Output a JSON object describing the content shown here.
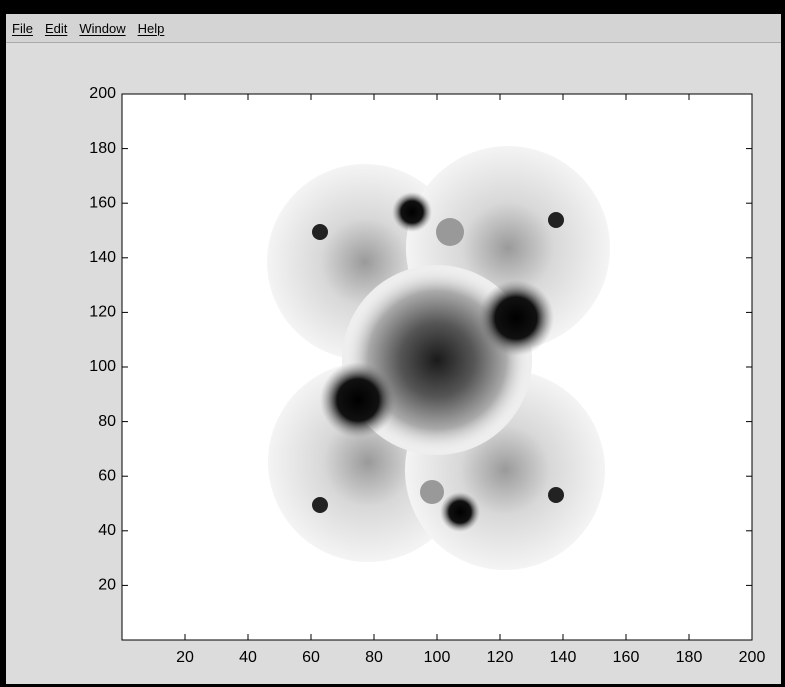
{
  "menu": [
    "File",
    "Edit",
    "Window",
    "Help"
  ],
  "chart_data": {
    "type": "image",
    "xlim": [
      0,
      200
    ],
    "ylim": [
      0,
      200
    ],
    "xticks": [
      20,
      40,
      60,
      80,
      100,
      120,
      140,
      160,
      180,
      200
    ],
    "yticks": [
      20,
      40,
      60,
      80,
      100,
      120,
      140,
      160,
      180,
      200
    ]
  }
}
